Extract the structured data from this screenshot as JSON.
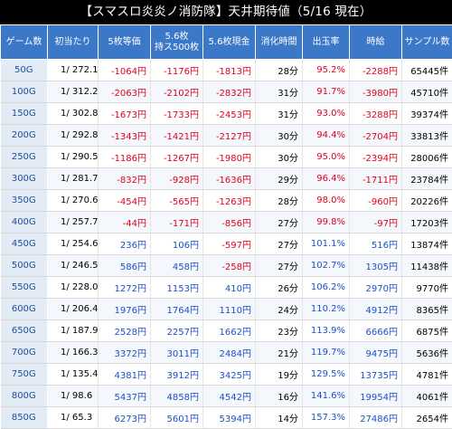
{
  "title": "【スマスロ炎炎ノ消防隊】天井期待値（5/16 現在）",
  "colors": {
    "header_bg": "#3c78c8",
    "negative": "#e0001b",
    "positive": "#1e4fc8",
    "title_bg": "#000000"
  },
  "columns": [
    {
      "line1": "ゲーム数",
      "line2": ""
    },
    {
      "line1": "初当たり",
      "line2": ""
    },
    {
      "line1": "5枚等価",
      "line2": ""
    },
    {
      "line1": "5.6枚",
      "line2": "持ス500枚"
    },
    {
      "line1": "5.6枚現金",
      "line2": ""
    },
    {
      "line1": "消化時間",
      "line2": ""
    },
    {
      "line1": "出玉率",
      "line2": ""
    },
    {
      "line1": "時給",
      "line2": ""
    },
    {
      "line1": "サンプル数",
      "line2": ""
    }
  ],
  "rows": [
    {
      "game": "50G",
      "odds": "1/ 272.1",
      "eq5": "-1064円",
      "mochi": "-1176円",
      "cash": "-1813円",
      "time": "28分",
      "rate": "95.2%",
      "hourly": "-2288円",
      "samples": "65445件"
    },
    {
      "game": "100G",
      "odds": "1/ 312.2",
      "eq5": "-2063円",
      "mochi": "-2102円",
      "cash": "-2832円",
      "time": "31分",
      "rate": "91.7%",
      "hourly": "-3980円",
      "samples": "45710件"
    },
    {
      "game": "150G",
      "odds": "1/ 302.8",
      "eq5": "-1673円",
      "mochi": "-1733円",
      "cash": "-2453円",
      "time": "31分",
      "rate": "93.0%",
      "hourly": "-3288円",
      "samples": "39374件"
    },
    {
      "game": "200G",
      "odds": "1/ 292.8",
      "eq5": "-1343円",
      "mochi": "-1421円",
      "cash": "-2127円",
      "time": "30分",
      "rate": "94.4%",
      "hourly": "-2704円",
      "samples": "33813件"
    },
    {
      "game": "250G",
      "odds": "1/ 290.5",
      "eq5": "-1186円",
      "mochi": "-1267円",
      "cash": "-1980円",
      "time": "30分",
      "rate": "95.0%",
      "hourly": "-2394円",
      "samples": "28006件"
    },
    {
      "game": "300G",
      "odds": "1/ 281.7",
      "eq5": "-832円",
      "mochi": "-928円",
      "cash": "-1636円",
      "time": "29分",
      "rate": "96.4%",
      "hourly": "-1711円",
      "samples": "23784件"
    },
    {
      "game": "350G",
      "odds": "1/ 270.6",
      "eq5": "-454円",
      "mochi": "-565円",
      "cash": "-1263円",
      "time": "28分",
      "rate": "98.0%",
      "hourly": "-960円",
      "samples": "20226件"
    },
    {
      "game": "400G",
      "odds": "1/ 257.7",
      "eq5": "-44円",
      "mochi": "-171円",
      "cash": "-856円",
      "time": "27分",
      "rate": "99.8%",
      "hourly": "-97円",
      "samples": "17203件"
    },
    {
      "game": "450G",
      "odds": "1/ 254.6",
      "eq5": "236円",
      "mochi": "106円",
      "cash": "-597円",
      "time": "27分",
      "rate": "101.1%",
      "hourly": "516円",
      "samples": "13874件"
    },
    {
      "game": "500G",
      "odds": "1/ 246.5",
      "eq5": "586円",
      "mochi": "458円",
      "cash": "-258円",
      "time": "27分",
      "rate": "102.7%",
      "hourly": "1305円",
      "samples": "11438件"
    },
    {
      "game": "550G",
      "odds": "1/ 228.0",
      "eq5": "1272円",
      "mochi": "1153円",
      "cash": "410円",
      "time": "26分",
      "rate": "106.2%",
      "hourly": "2970円",
      "samples": "9770件"
    },
    {
      "game": "600G",
      "odds": "1/ 206.4",
      "eq5": "1976円",
      "mochi": "1764円",
      "cash": "1110円",
      "time": "24分",
      "rate": "110.2%",
      "hourly": "4912円",
      "samples": "8365件"
    },
    {
      "game": "650G",
      "odds": "1/ 187.9",
      "eq5": "2528円",
      "mochi": "2257円",
      "cash": "1662円",
      "time": "23分",
      "rate": "113.9%",
      "hourly": "6666円",
      "samples": "6875件"
    },
    {
      "game": "700G",
      "odds": "1/ 166.3",
      "eq5": "3372円",
      "mochi": "3011円",
      "cash": "2484円",
      "time": "21分",
      "rate": "119.7%",
      "hourly": "9475円",
      "samples": "5636件"
    },
    {
      "game": "750G",
      "odds": "1/ 135.4",
      "eq5": "4381円",
      "mochi": "3912円",
      "cash": "3425円",
      "time": "19分",
      "rate": "129.5%",
      "hourly": "13735円",
      "samples": "4781件"
    },
    {
      "game": "800G",
      "odds": "1/ 98.6",
      "eq5": "5437円",
      "mochi": "4858円",
      "cash": "4542円",
      "time": "16分",
      "rate": "141.6%",
      "hourly": "19954円",
      "samples": "4061件"
    },
    {
      "game": "850G",
      "odds": "1/ 65.3",
      "eq5": "6273円",
      "mochi": "5601円",
      "cash": "5394円",
      "time": "14分",
      "rate": "157.3%",
      "hourly": "27486円",
      "samples": "2654件"
    }
  ]
}
